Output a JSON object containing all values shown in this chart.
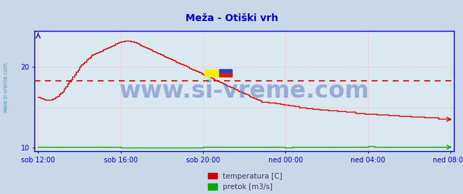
{
  "title": "Meža - Otiški vrh",
  "title_color": "#0000cc",
  "title_fontsize": 10,
  "bg_color": "#c8d8e8",
  "plot_bg_color": "#dce8f0",
  "grid_color": "#ffaaaa",
  "axis_color": "#0000cc",
  "watermark": "www.si-vreme.com",
  "watermark_color": "#4466bb",
  "watermark_alpha": 0.45,
  "watermark_fontsize": 24,
  "x_tick_labels": [
    "sob 12:00",
    "sob 16:00",
    "sob 20:00",
    "ned 00:00",
    "ned 04:00",
    "ned 08:00"
  ],
  "x_tick_positions": [
    0,
    48,
    96,
    144,
    192,
    240
  ],
  "ylim": [
    9.5,
    24.5
  ],
  "yticks": [
    10,
    20
  ],
  "xlim": [
    0,
    240
  ],
  "avg_line_y": 18.3,
  "avg_line_color": "#cc0000",
  "temp_color": "#cc0000",
  "flow_color": "#00aa00",
  "legend_temp_color": "#cc0000",
  "legend_flow_color": "#00aa00",
  "legend_temp_label": "temperatura [C]",
  "legend_flow_label": "pretok [m3/s]",
  "sidebar_text": "www.si-vreme.com",
  "sidebar_color": "#3399cc",
  "temp_data": [
    16.3,
    16.2,
    16.1,
    16.0,
    15.9,
    15.9,
    15.9,
    15.9,
    16.0,
    16.1,
    16.3,
    16.4,
    16.6,
    16.8,
    17.0,
    17.3,
    17.6,
    17.9,
    18.2,
    18.5,
    18.8,
    19.1,
    19.4,
    19.7,
    20.0,
    20.3,
    20.5,
    20.7,
    20.9,
    21.1,
    21.3,
    21.5,
    21.6,
    21.7,
    21.8,
    21.9,
    22.0,
    22.1,
    22.2,
    22.3,
    22.4,
    22.5,
    22.6,
    22.7,
    22.8,
    22.9,
    23.0,
    23.1,
    23.2,
    23.2,
    23.3,
    23.3,
    23.3,
    23.3,
    23.2,
    23.2,
    23.1,
    23.0,
    22.9,
    22.8,
    22.7,
    22.6,
    22.5,
    22.4,
    22.3,
    22.2,
    22.1,
    22.0,
    21.9,
    21.8,
    21.7,
    21.6,
    21.5,
    21.4,
    21.3,
    21.2,
    21.1,
    21.0,
    20.9,
    20.8,
    20.7,
    20.6,
    20.5,
    20.4,
    20.3,
    20.2,
    20.1,
    20.0,
    19.9,
    19.8,
    19.7,
    19.6,
    19.5,
    19.4,
    19.3,
    19.2,
    19.1,
    19.0,
    18.9,
    18.8,
    18.7,
    18.6,
    18.5,
    18.4,
    18.3,
    18.2,
    18.1,
    18.0,
    17.9,
    17.8,
    17.7,
    17.6,
    17.5,
    17.4,
    17.3,
    17.2,
    17.1,
    17.0,
    16.9,
    16.8,
    16.7,
    16.6,
    16.5,
    16.4,
    16.3,
    16.2,
    16.1,
    16.0,
    15.9,
    15.8,
    15.7,
    15.7,
    15.7,
    15.7,
    15.6,
    15.6,
    15.6,
    15.6,
    15.5,
    15.5,
    15.5,
    15.4,
    15.4,
    15.3,
    15.3,
    15.3,
    15.2,
    15.2,
    15.2,
    15.1,
    15.1,
    15.1,
    15.0,
    15.0,
    15.0,
    15.0,
    14.9,
    14.9,
    14.9,
    14.9,
    14.8,
    14.8,
    14.8,
    14.8,
    14.7,
    14.7,
    14.7,
    14.7,
    14.7,
    14.6,
    14.6,
    14.6,
    14.6,
    14.6,
    14.5,
    14.5,
    14.5,
    14.5,
    14.5,
    14.4,
    14.4,
    14.4,
    14.4,
    14.4,
    14.4,
    14.3,
    14.3,
    14.3,
    14.3,
    14.3,
    14.2,
    14.2,
    14.2,
    14.2,
    14.2,
    14.2,
    14.2,
    14.1,
    14.1,
    14.1,
    14.1,
    14.1,
    14.1,
    14.1,
    14.0,
    14.0,
    14.0,
    14.0,
    14.0,
    14.0,
    13.9,
    13.9,
    13.9,
    13.9,
    13.9,
    13.9,
    13.9,
    13.8,
    13.8,
    13.8,
    13.8,
    13.8,
    13.8,
    13.8,
    13.8,
    13.7,
    13.7,
    13.7,
    13.7,
    13.7,
    13.7,
    13.7,
    13.7,
    13.6,
    13.6,
    13.6,
    13.6,
    13.6,
    13.6,
    13.6,
    13.5
  ],
  "flow_data_segments": [
    {
      "start": 0,
      "end": 48,
      "value": 10.05
    },
    {
      "start": 48,
      "end": 96,
      "value": 9.97
    },
    {
      "start": 96,
      "end": 144,
      "value": 10.02
    },
    {
      "start": 144,
      "end": 148,
      "value": 9.95
    },
    {
      "start": 148,
      "end": 192,
      "value": 10.02
    },
    {
      "start": 192,
      "end": 196,
      "value": 10.1
    },
    {
      "start": 196,
      "end": 241,
      "value": 10.02
    }
  ]
}
